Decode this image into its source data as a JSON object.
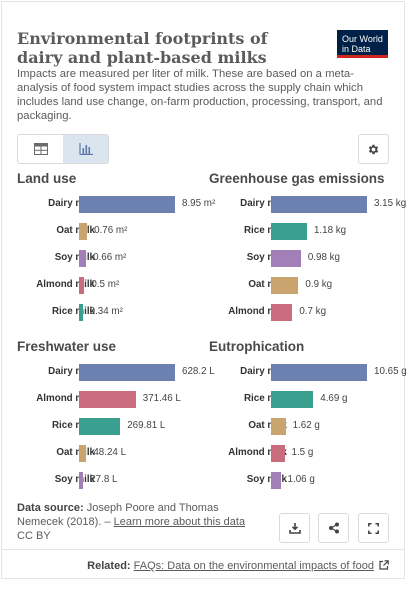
{
  "header": {
    "title": "Environmental footprints of dairy and plant-based milks",
    "subtitle": "Impacts are measured per liter of milk. These are based on a meta-analysis of food system impact studies across the supply chain which includes land use change, on-farm production, processing, transport, and packaging.",
    "logo_line1": "Our World",
    "logo_line2": "in Data"
  },
  "colors": {
    "Dairy milk": "#6d81b0",
    "Oat milk": "#c9a46e",
    "Soy milk": "#a27fb7",
    "Almond milk": "#c96c7d",
    "Rice milk": "#3a9f8e"
  },
  "chart_data": [
    {
      "type": "bar",
      "title": "Land use",
      "unit": "m²",
      "categories": [
        "Dairy milk",
        "Oat milk",
        "Soy milk",
        "Almond milk",
        "Rice milk"
      ],
      "values": [
        8.95,
        0.76,
        0.66,
        0.5,
        0.34
      ],
      "value_labels": [
        "8.95 m²",
        "0.76 m²",
        "0.66 m²",
        "0.5 m²",
        "0.34 m²"
      ]
    },
    {
      "type": "bar",
      "title": "Greenhouse gas emissions",
      "unit": "kg",
      "categories": [
        "Dairy milk",
        "Rice milk",
        "Soy milk",
        "Oat milk",
        "Almond milk"
      ],
      "values": [
        3.15,
        1.18,
        0.98,
        0.9,
        0.7
      ],
      "value_labels": [
        "3.15 kg",
        "1.18 kg",
        "0.98 kg",
        "0.9 kg",
        "0.7 kg"
      ]
    },
    {
      "type": "bar",
      "title": "Freshwater use",
      "unit": "L",
      "categories": [
        "Dairy milk",
        "Almond milk",
        "Rice milk",
        "Oat milk",
        "Soy milk"
      ],
      "values": [
        628.2,
        371.46,
        269.81,
        48.24,
        27.8
      ],
      "value_labels": [
        "628.2 L",
        "371.46 L",
        "269.81 L",
        "48.24 L",
        "27.8 L"
      ]
    },
    {
      "type": "bar",
      "title": "Eutrophication",
      "unit": "g",
      "categories": [
        "Dairy milk",
        "Rice milk",
        "Oat milk",
        "Almond milk",
        "Soy milk"
      ],
      "values": [
        10.65,
        4.69,
        1.62,
        1.5,
        1.06
      ],
      "value_labels": [
        "10.65 g",
        "4.69 g",
        "1.62 g",
        "1.5 g",
        "1.06 g"
      ]
    }
  ],
  "footer": {
    "source_label": "Data source:",
    "source_text": "Joseph Poore and Thomas Nemecek (2018).",
    "source_sep": " – ",
    "learn_more": "Learn more about this data",
    "license": "CC BY",
    "related_label": "Related:",
    "related_link": "FAQs: Data on the environmental impacts of food"
  },
  "icons": {
    "table_tab": "table-icon",
    "chart_tab": "bar-chart-icon",
    "settings": "gear-icon",
    "download": "download-icon",
    "share": "share-icon",
    "fullscreen": "fullscreen-icon",
    "external": "external-link-icon"
  }
}
